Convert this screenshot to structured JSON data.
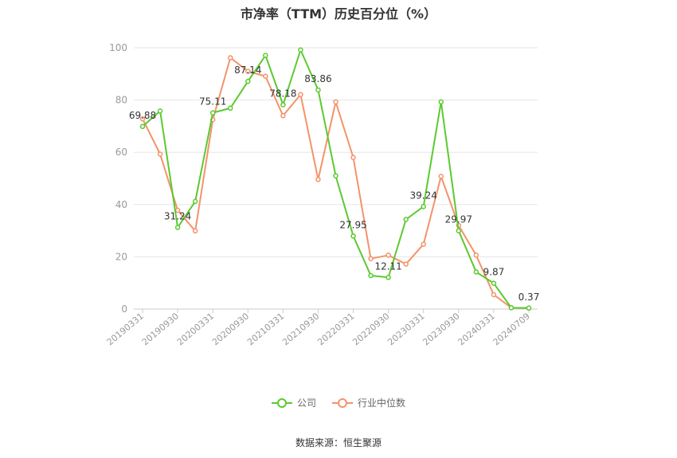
{
  "chart_data": {
    "type": "line",
    "title": "市净率（TTM）历史百分位（%）",
    "xlabel": "",
    "ylabel": "",
    "ylim": [
      0,
      100
    ],
    "yticks": [
      0,
      20,
      40,
      60,
      80,
      100
    ],
    "x": [
      "20190331",
      "20190630",
      "20190930",
      "20191231",
      "20200331",
      "20200630",
      "20200930",
      "20201231",
      "20210331",
      "20210630",
      "20210930",
      "20211231",
      "20220331",
      "20220630",
      "20220930",
      "20221231",
      "20230331",
      "20230630",
      "20230930",
      "20231231",
      "20240331",
      "20240630",
      "20240709"
    ],
    "xtick_labels": [
      "20190331",
      "20190930",
      "20200331",
      "20200930",
      "20210331",
      "20210930",
      "20220331",
      "20220930",
      "20230331",
      "20230930",
      "20240331",
      "20240709"
    ],
    "grid": true,
    "legend_position": "bottom",
    "series": [
      {
        "name": "公司",
        "color": "#5cc930",
        "values": [
          69.88,
          75.8,
          31.24,
          41.2,
          75.11,
          76.9,
          87.14,
          97.1,
          78.18,
          99.2,
          83.86,
          51.0,
          27.95,
          12.8,
          12.11,
          34.3,
          39.24,
          79.3,
          29.97,
          14.2,
          9.87,
          0.5,
          0.37
        ],
        "labels": {
          "0": "69.88",
          "2": "31.24",
          "4": "75.11",
          "6": "87.14",
          "8": "78.18",
          "10": "83.86",
          "12": "27.95",
          "14": "12.11",
          "16": "39.24",
          "18": "29.97",
          "20": "9.87",
          "22": "0.37"
        }
      },
      {
        "name": "行业中位数",
        "color": "#f4936a",
        "values": [
          72.8,
          59.3,
          37.8,
          29.9,
          72.5,
          96.2,
          91.0,
          89.1,
          74.0,
          82.1,
          49.6,
          79.3,
          58.0,
          19.3,
          20.6,
          17.2,
          24.8,
          50.8,
          32.0,
          20.6,
          5.5,
          0.5,
          0.37
        ]
      }
    ]
  },
  "source": "数据来源：恒生聚源"
}
